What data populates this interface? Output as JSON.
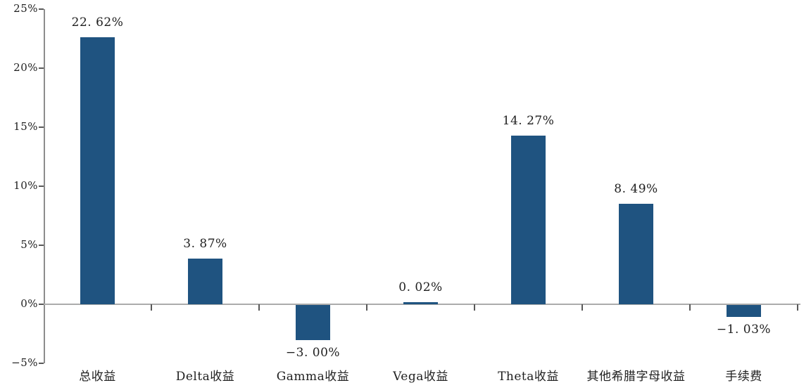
{
  "chart_data": {
    "type": "bar",
    "title": "",
    "categories": [
      "总收益",
      "Delta收益",
      "Gamma收益",
      "Vega收益",
      "Theta收益",
      "其他希腊字母收益",
      "手续费"
    ],
    "values": [
      22.62,
      3.87,
      -3.0,
      0.02,
      14.27,
      8.49,
      -1.03
    ],
    "data_labels": [
      "22. 62%",
      "3. 87%",
      "−3. 00%",
      "0. 02%",
      "14. 27%",
      "8. 49%",
      "−1. 03%"
    ],
    "yticks": [
      {
        "value": 25,
        "label": "25%"
      },
      {
        "value": 20,
        "label": "20%"
      },
      {
        "value": 15,
        "label": "15%"
      },
      {
        "value": 10,
        "label": "10%"
      },
      {
        "value": 5,
        "label": "5%"
      },
      {
        "value": 0,
        "label": "0%"
      },
      {
        "value": -5,
        "label": "−5%"
      }
    ],
    "ylim": [
      -5,
      25
    ],
    "ytick_step": 5,
    "grid": false,
    "legend_position": "none",
    "bar_color": "#1f5380",
    "axis_line_color": "#8c8c8c",
    "zero_line_color": "#ababab",
    "tick_color": "#595959",
    "text_color": "#1f1f1f",
    "background_color": "#ffffff"
  }
}
